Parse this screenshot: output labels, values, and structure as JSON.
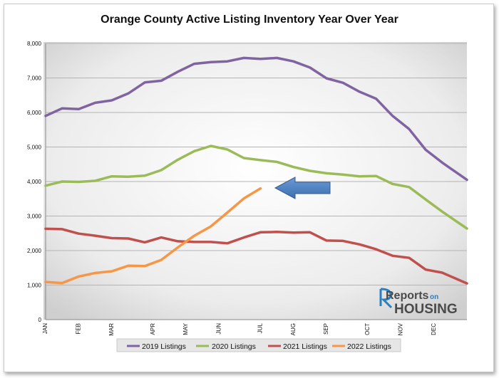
{
  "chart_data": {
    "type": "line",
    "title": "Orange County Active Listing Inventory Year Over Year",
    "xlabel": "",
    "ylabel": "",
    "ylim": [
      0,
      8000
    ],
    "y_ticks": [
      "0",
      "1,000",
      "2,000",
      "3,000",
      "4,000",
      "5,000",
      "6,000",
      "7,000",
      "8,000"
    ],
    "x_ticks": [
      {
        "label": "JAN",
        "x": 0
      },
      {
        "label": "FEB",
        "x": 4
      },
      {
        "label": "MAR",
        "x": 8
      },
      {
        "label": "APR",
        "x": 13
      },
      {
        "label": "MAY",
        "x": 17
      },
      {
        "label": "JUN",
        "x": 21
      },
      {
        "label": "JUL",
        "x": 26
      },
      {
        "label": "AUG",
        "x": 30
      },
      {
        "label": "SEP",
        "x": 34
      },
      {
        "label": "OCT",
        "x": 39
      },
      {
        "label": "NOV",
        "x": 43
      },
      {
        "label": "DEC",
        "x": 47
      }
    ],
    "x_max": 51,
    "grid": true,
    "legend": "bottom",
    "series": [
      {
        "name": "2019 Listings",
        "color": "#8064a2",
        "x": [
          0,
          2,
          4,
          6,
          8,
          10,
          12,
          14,
          16,
          18,
          20,
          22,
          24,
          26,
          28,
          30,
          32,
          34,
          36,
          38,
          40,
          42,
          44,
          46,
          48,
          51
        ],
        "values": [
          5900,
          6120,
          6100,
          6280,
          6350,
          6550,
          6870,
          6920,
          7180,
          7410,
          7460,
          7480,
          7580,
          7550,
          7580,
          7480,
          7300,
          6990,
          6860,
          6600,
          6400,
          5900,
          5520,
          4920,
          4550,
          4050
        ]
      },
      {
        "name": "2020 Listings",
        "color": "#9bbb59",
        "x": [
          0,
          2,
          4,
          6,
          8,
          10,
          12,
          14,
          16,
          18,
          20,
          22,
          24,
          26,
          28,
          30,
          32,
          34,
          36,
          38,
          40,
          42,
          44,
          46,
          48,
          51
        ],
        "values": [
          3880,
          4000,
          3990,
          4020,
          4150,
          4140,
          4170,
          4330,
          4630,
          4880,
          5030,
          4930,
          4680,
          4620,
          4570,
          4420,
          4310,
          4240,
          4200,
          4150,
          4160,
          3930,
          3840,
          3480,
          3130,
          2640
        ]
      },
      {
        "name": "2021 Listings",
        "color": "#c0504d",
        "x": [
          0,
          2,
          4,
          6,
          8,
          10,
          12,
          14,
          16,
          18,
          20,
          22,
          24,
          26,
          28,
          30,
          32,
          34,
          36,
          38,
          40,
          42,
          44,
          46,
          48,
          51
        ],
        "values": [
          2630,
          2620,
          2490,
          2430,
          2360,
          2350,
          2240,
          2380,
          2270,
          2250,
          2250,
          2210,
          2380,
          2530,
          2540,
          2520,
          2530,
          2290,
          2280,
          2180,
          2040,
          1850,
          1790,
          1450,
          1360,
          1050
        ]
      },
      {
        "name": "2022 Listings",
        "color": "#f79646",
        "x": [
          0,
          2,
          4,
          6,
          8,
          10,
          12,
          14,
          16,
          18,
          20,
          22,
          24,
          26
        ],
        "values": [
          1090,
          1060,
          1250,
          1350,
          1400,
          1560,
          1550,
          1730,
          2090,
          2430,
          2700,
          3100,
          3510,
          3800
        ]
      }
    ],
    "annotation": {
      "type": "arrow",
      "color": "#4f81bd"
    }
  },
  "logo": {
    "top": "Reports",
    "on": "on",
    "bottom": "HOUSING"
  }
}
